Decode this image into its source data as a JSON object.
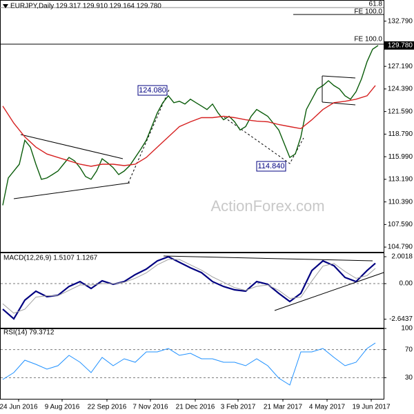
{
  "chart_data": [
    {
      "type": "line",
      "title": "EURJPY,Daily 129.317 129.910 129.164 129.780",
      "xlim": [
        0,
        68
      ],
      "ylim": [
        104.2,
        134.9
      ],
      "yticks": [
        {
          "value": 132.79,
          "label": "132.790"
        },
        {
          "value": 127.19,
          "label": "127.190"
        },
        {
          "value": 124.39,
          "label": "124.390"
        },
        {
          "value": 121.59,
          "label": "121.590"
        },
        {
          "value": 118.79,
          "label": "118.790"
        },
        {
          "value": 115.99,
          "label": "115.990"
        },
        {
          "value": 113.19,
          "label": "113.190"
        },
        {
          "value": 110.39,
          "label": "110.390"
        },
        {
          "value": 107.59,
          "label": "107.590"
        },
        {
          "value": 104.79,
          "label": "104.790"
        }
      ],
      "last_price": {
        "value": 129.78,
        "label": "129.780"
      },
      "annotations": [
        "124.080",
        "114.840",
        "61.8",
        "FE 100.0",
        "FE 100.0",
        "ActionForex.com"
      ],
      "series": [
        {
          "color": "#0a5c0a",
          "values": [
            109.97,
            113.36,
            114.21,
            115.06,
            118.03,
            117.18,
            115.06,
            113.19,
            113.36,
            113.78,
            114.21,
            115.06,
            115.9,
            115.48,
            114.63,
            113.53,
            113.19,
            114.21,
            115.74,
            115.23,
            114.63,
            113.78,
            114.21,
            114.89,
            115.9,
            116.92,
            118.03,
            119.72,
            121.42,
            122.69,
            123.54,
            122.69,
            122.86,
            122.52,
            123.12,
            122.69,
            122.27,
            121.84,
            122.52,
            121.42,
            120.57,
            121.0,
            120.32,
            119.3,
            119.72,
            121.0,
            121.84,
            121.42,
            121.0,
            120.15,
            119.3,
            117.6,
            115.9,
            116.33,
            118.45,
            121.84,
            123.12,
            124.39,
            124.81,
            125.41,
            124.81,
            124.39,
            123.54,
            123.12,
            124.05,
            125.66,
            127.78,
            129.31,
            129.78
          ]
        },
        {
          "color": "#d62020",
          "x": [
            0,
            2,
            4,
            6,
            8,
            10,
            12,
            14,
            16,
            18,
            20,
            22,
            24,
            26,
            28,
            30,
            32,
            34,
            36,
            38,
            40,
            42,
            44,
            46,
            48,
            50,
            52,
            54,
            56,
            58,
            60,
            62,
            64,
            66,
            67.5
          ],
          "values": [
            122.27,
            120.15,
            118.45,
            117.18,
            116.33,
            115.9,
            115.48,
            115.06,
            114.8,
            115.06,
            115.06,
            114.89,
            115.06,
            115.9,
            117.18,
            118.45,
            119.72,
            120.32,
            120.83,
            120.83,
            121.0,
            120.83,
            120.57,
            120.4,
            120.32,
            119.98,
            119.72,
            119.47,
            120.57,
            121.84,
            122.69,
            122.86,
            123.12,
            123.54,
            124.81
          ]
        }
      ]
    },
    {
      "type": "line",
      "title": "MACD(12,26,9) 1.5107 1.1267",
      "xlim": [
        0,
        68
      ],
      "ylim": [
        -3.28,
        2.26
      ],
      "yticks": [
        2.0018,
        {
          "value": 0,
          "label": "0.00"
        },
        -2.6437
      ],
      "series": [
        {
          "color": "#000080",
          "x": [
            0,
            2,
            4,
            6,
            8,
            10,
            12,
            14,
            16,
            18,
            20,
            22,
            24,
            26,
            28,
            30,
            32,
            34,
            36,
            38,
            40,
            42,
            44,
            46,
            48,
            50,
            52,
            54,
            56,
            58,
            60,
            62,
            64,
            66,
            67.5
          ],
          "values": [
            -1.9,
            -2.62,
            -1.23,
            -0.56,
            -0.97,
            -0.87,
            -0.21,
            0.15,
            -0.36,
            0.21,
            -0.05,
            0.15,
            0.67,
            1.08,
            1.69,
            2.0,
            1.59,
            1.18,
            0.82,
            0.15,
            -0.21,
            -0.46,
            -0.56,
            0.15,
            -0.05,
            -0.72,
            -1.33,
            -0.72,
            0.97,
            1.69,
            1.33,
            0.46,
            0.15,
            0.97,
            1.51
          ]
        },
        {
          "color": "#a0a0a0",
          "x": [
            0,
            2,
            4,
            6,
            8,
            10,
            12,
            14,
            16,
            18,
            20,
            22,
            24,
            26,
            28,
            30,
            32,
            34,
            36,
            38,
            40,
            42,
            44,
            46,
            48,
            50,
            52,
            54,
            56,
            58,
            60,
            62,
            64,
            66,
            67.5
          ],
          "values": [
            -1.5,
            -2.2,
            -1.9,
            -1.0,
            -0.9,
            -0.9,
            -0.5,
            -0.1,
            -0.1,
            0.0,
            0.0,
            0.1,
            0.4,
            0.8,
            1.4,
            1.8,
            1.8,
            1.4,
            1.0,
            0.5,
            0.1,
            -0.3,
            -0.5,
            -0.2,
            -0.1,
            -0.5,
            -1.1,
            -1.0,
            0.2,
            1.3,
            1.5,
            0.9,
            0.4,
            0.6,
            1.13
          ]
        }
      ]
    },
    {
      "type": "line",
      "title": "RSI(14) 79.3712",
      "xlim": [
        0,
        68
      ],
      "ylim": [
        0,
        101
      ],
      "yticks": [
        100,
        70,
        30
      ],
      "xticks": [
        {
          "value": 2.875,
          "label": "24 Jun 2016"
        },
        {
          "value": 10.75,
          "label": "9 Aug 2016"
        },
        {
          "value": 18.875,
          "label": "22 Sep 2016"
        },
        {
          "value": 26.75,
          "label": "7 Nov 2016"
        },
        {
          "value": 34.875,
          "label": "21 Dec 2016"
        },
        {
          "value": 42.625,
          "label": "3 Feb 2017"
        },
        {
          "value": 50.75,
          "label": "21 Mar 2017"
        },
        {
          "value": 58.75,
          "label": "4 May 2017"
        },
        {
          "value": 66.75,
          "label": "19 Jun 2017"
        }
      ],
      "series": [
        {
          "color": "#1e90ff",
          "x": [
            0,
            2,
            4,
            6,
            8,
            10,
            12,
            14,
            16,
            18,
            20,
            22,
            24,
            26,
            28,
            30,
            32,
            34,
            36,
            38,
            40,
            42,
            44,
            46,
            48,
            50,
            52,
            54,
            56,
            58,
            60,
            62,
            64,
            66,
            67.5
          ],
          "values": [
            27.5,
            37.3,
            54.9,
            49.0,
            42.2,
            47.1,
            61.8,
            52.0,
            37.3,
            58.8,
            47.1,
            56.9,
            52.0,
            66.7,
            66.7,
            71.6,
            61.8,
            64.7,
            56.9,
            56.9,
            52.0,
            52.0,
            47.1,
            56.9,
            47.1,
            29.4,
            19.6,
            66.7,
            66.7,
            71.6,
            58.8,
            47.1,
            52.0,
            71.6,
            79.37
          ]
        }
      ]
    }
  ]
}
